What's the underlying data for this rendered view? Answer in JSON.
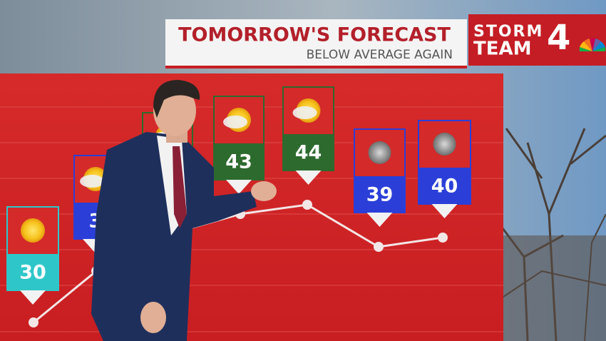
{
  "header": {
    "title": "TOMORROW'S FORECAST",
    "subtitle": "BELOW AVERAGE AGAIN"
  },
  "logo": {
    "line1": "STORM",
    "line2": "TEAM",
    "number": "4"
  },
  "forecast": [
    {
      "temp": "30"
    },
    {
      "temp": "3"
    },
    {
      "temp": "43"
    },
    {
      "temp": "44"
    },
    {
      "temp": "39"
    },
    {
      "temp": "40"
    }
  ]
}
